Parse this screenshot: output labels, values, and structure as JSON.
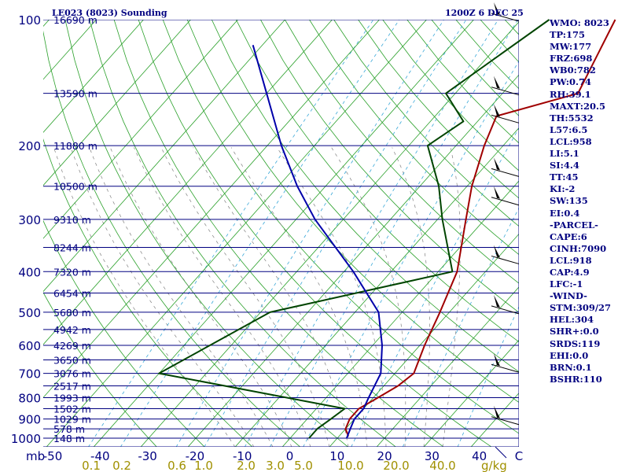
{
  "chart_data": {
    "type": "line",
    "title": "LE023 (8023) Sounding",
    "valid_time": "1200Z  6 DEC 25",
    "pressure_axis_label": "mb",
    "pressure_levels": [
      100,
      200,
      300,
      400,
      500,
      600,
      700,
      800,
      900,
      1000
    ],
    "temperature_axis_label": "C",
    "temperature_ticks": [
      -50,
      -40,
      -30,
      -20,
      -10,
      0,
      10,
      20,
      30,
      40
    ],
    "mixing_ratio_unit": "g/kg",
    "mixing_ratio_ticks": [
      "0.1",
      "0.2",
      "0.6",
      "1.0",
      "2.0",
      "3.0",
      "5.0",
      "10.0",
      "20.0",
      "40.0"
    ],
    "heights": [
      {
        "p": 100,
        "label": "16690 m"
      },
      {
        "p": 150,
        "label": "13590 m"
      },
      {
        "p": 200,
        "label": "11880 m"
      },
      {
        "p": 250,
        "label": "10500 m"
      },
      {
        "p": 300,
        "label": "9310 m"
      },
      {
        "p": 350,
        "label": "8244 m"
      },
      {
        "p": 400,
        "label": "7320 m"
      },
      {
        "p": 450,
        "label": "6454 m"
      },
      {
        "p": 500,
        "label": "5680 m"
      },
      {
        "p": 550,
        "label": "4942 m"
      },
      {
        "p": 600,
        "label": "4269 m"
      },
      {
        "p": 650,
        "label": "3650 m"
      },
      {
        "p": 700,
        "label": "3076 m"
      },
      {
        "p": 750,
        "label": "2517 m"
      },
      {
        "p": 800,
        "label": "1993 m"
      },
      {
        "p": 850,
        "label": "1502 m"
      },
      {
        "p": 900,
        "label": "1029 m"
      },
      {
        "p": 950,
        "label": "578 m"
      },
      {
        "p": 1000,
        "label": "148 m"
      }
    ],
    "series": [
      {
        "name": "Temperature",
        "color": "#a00000",
        "points": [
          [
            100,
            -10
          ],
          [
            150,
            -4
          ],
          [
            170,
            -17
          ],
          [
            200,
            -14
          ],
          [
            250,
            -9
          ],
          [
            300,
            -4
          ],
          [
            400,
            4
          ],
          [
            500,
            8
          ],
          [
            600,
            11
          ],
          [
            700,
            14
          ],
          [
            750,
            13
          ],
          [
            800,
            11
          ],
          [
            850,
            9
          ],
          [
            900,
            9
          ],
          [
            950,
            10
          ],
          [
            990,
            12
          ]
        ]
      },
      {
        "name": "Dew point",
        "color": "#004400",
        "points": [
          [
            100,
            -24
          ],
          [
            150,
            -32
          ],
          [
            175,
            -23
          ],
          [
            200,
            -26
          ],
          [
            250,
            -16
          ],
          [
            300,
            -9
          ],
          [
            400,
            3
          ],
          [
            500,
            -28
          ],
          [
            700,
            -40
          ],
          [
            850,
            6
          ],
          [
            900,
            5
          ],
          [
            950,
            4
          ],
          [
            1000,
            4
          ]
        ]
      },
      {
        "name": "Parcel path",
        "color": "#0000aa",
        "points": [
          [
            115,
            -82
          ],
          [
            150,
            -70
          ],
          [
            200,
            -57
          ],
          [
            250,
            -46
          ],
          [
            300,
            -36
          ],
          [
            400,
            -18
          ],
          [
            500,
            -5
          ],
          [
            600,
            2
          ],
          [
            700,
            7
          ],
          [
            800,
            9
          ],
          [
            850,
            10
          ],
          [
            900,
            10
          ],
          [
            950,
            11
          ],
          [
            1000,
            12
          ]
        ]
      }
    ],
    "wind_barbs": [
      {
        "p": 100,
        "barbs": "50 kt"
      },
      {
        "p": 150,
        "barbs": "50 kt"
      },
      {
        "p": 175,
        "barbs": "75 kt"
      },
      {
        "p": 235,
        "barbs": "60 kt"
      },
      {
        "p": 275,
        "barbs": "60 kt"
      },
      {
        "p": 380,
        "barbs": "25 kt"
      },
      {
        "p": 500,
        "barbs": "15 kt"
      },
      {
        "p": 690,
        "barbs": "15 kt"
      },
      {
        "p": 920,
        "barbs": "10 kt"
      }
    ]
  },
  "indices": [
    "WMO: 8023",
    "TP:175",
    "MW:177",
    "FRZ:698",
    "WB0:782",
    "PW:0.74",
    "RH:39.1",
    "MAXT:20.5",
    "TH:5532",
    "L57:6.5",
    "LCL:958",
    "LI:5.1",
    "SI:4.4",
    "TT:45",
    "KI:-2",
    "SW:135",
    "EI:0.4",
    "-PARCEL-",
    "CAPE:6",
    "CINH:7090",
    "LCL:918",
    "CAP:4.9",
    "LFC:-1",
    "-WIND-",
    "STM:309/27",
    "HEL:304",
    "SHR+:0.0",
    "SRDS:119",
    "EHI:0.0",
    "BRN:0.1",
    "BSHR:110"
  ]
}
